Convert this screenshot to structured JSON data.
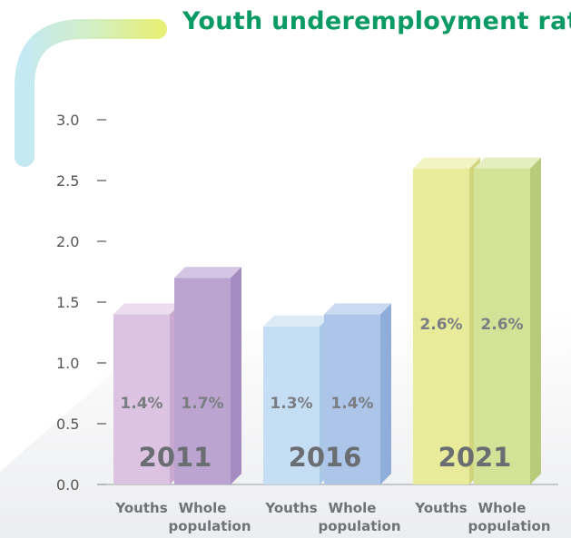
{
  "title": "Youth underemployment rat",
  "colors": {
    "title": "#0a9a63",
    "axis_text": "#555555",
    "label_text": "#6f7277",
    "value_text": "#7a7d82",
    "year_text": "#6a6d71"
  },
  "chart_data": {
    "type": "bar",
    "title": "Youth underemployment rat",
    "y_ticks": [
      "0.0",
      "0.5",
      "1.0",
      "1.5",
      "2.0",
      "2.5",
      "3.0"
    ],
    "ylim": [
      0,
      3.0
    ],
    "grid": false,
    "groups": [
      {
        "year": "2011",
        "bars": [
          {
            "label": [
              "Youths"
            ],
            "value": 1.4,
            "value_label": "1.4%",
            "colors": {
              "front": "#dcc3e1",
              "top": "#ebdcee",
              "side": "#c9a9cf"
            }
          },
          {
            "label": [
              "Whole",
              "population"
            ],
            "value": 1.7,
            "value_label": "1.7%",
            "colors": {
              "front": "#bba4d0",
              "top": "#d3c5e3",
              "side": "#a48cc0"
            }
          }
        ]
      },
      {
        "year": "2016",
        "bars": [
          {
            "label": [
              "Youths"
            ],
            "value": 1.3,
            "value_label": "1.3%",
            "colors": {
              "front": "#c6def4",
              "top": "#dceaf8",
              "side": "#aac9e7"
            }
          },
          {
            "label": [
              "Whole",
              "population"
            ],
            "value": 1.4,
            "value_label": "1.4%",
            "colors": {
              "front": "#acc5e9",
              "top": "#cbdaf2",
              "side": "#8eaed9"
            }
          }
        ]
      },
      {
        "year": "2021",
        "bars": [
          {
            "label": [
              "Youths"
            ],
            "value": 2.6,
            "value_label": "2.6%",
            "colors": {
              "front": "#e8eb9a",
              "top": "#f2f4c3",
              "side": "#d2d57e"
            }
          },
          {
            "label": [
              "Whole",
              "population"
            ],
            "value": 2.6,
            "value_label": "2.6%",
            "colors": {
              "front": "#d3e297",
              "top": "#e5eebf",
              "side": "#b8cb7a"
            }
          }
        ]
      }
    ]
  }
}
